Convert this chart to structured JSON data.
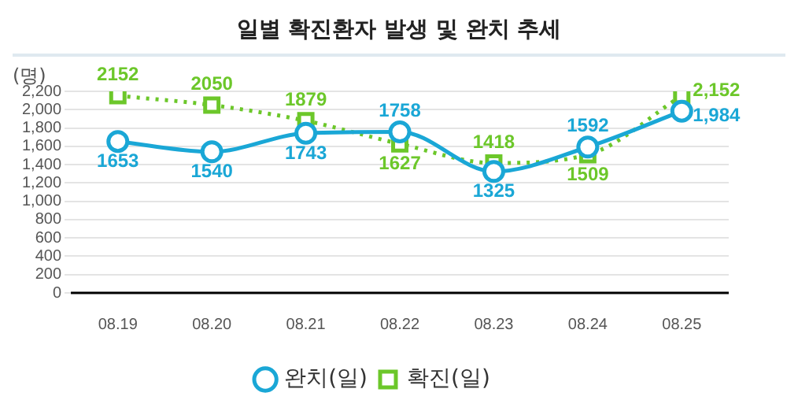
{
  "chart_data": {
    "type": "line",
    "title": "일별 확진환자 발생 및 완치 추세",
    "ylabel": "(명)",
    "categories": [
      "08.19",
      "08.20",
      "08.21",
      "08.22",
      "08.23",
      "08.24",
      "08.25"
    ],
    "series": [
      {
        "name": "완치(일)",
        "color": "#1aa7d6",
        "marker": "circle",
        "line_style": "solid",
        "values": [
          1653,
          1540,
          1743,
          1758,
          1325,
          1592,
          1984
        ],
        "value_labels": [
          "1653",
          "1540",
          "1743",
          "1758",
          "1325",
          "1592",
          "1,984"
        ]
      },
      {
        "name": "확진(일)",
        "color": "#6cc72a",
        "marker": "square",
        "line_style": "dotted",
        "values": [
          2152,
          2050,
          1879,
          1627,
          1418,
          1509,
          2152
        ],
        "value_labels": [
          "2152",
          "2050",
          "1879",
          "1627",
          "1418",
          "1509",
          "2,152"
        ]
      }
    ],
    "ylim": [
      0,
      2200
    ],
    "yticks": [
      0,
      200,
      400,
      600,
      800,
      {
        "value": 1000,
        "label": "1,000"
      },
      {
        "value": 1200,
        "label": "1,200"
      },
      {
        "value": 1400,
        "label": "1,400"
      },
      {
        "value": 1600,
        "label": "1,600"
      },
      {
        "value": 1800,
        "label": "1,800"
      },
      {
        "value": 2000,
        "label": "2,000"
      },
      {
        "value": 2200,
        "label": "2,200"
      }
    ],
    "grid": "y",
    "legend": "bottom"
  }
}
